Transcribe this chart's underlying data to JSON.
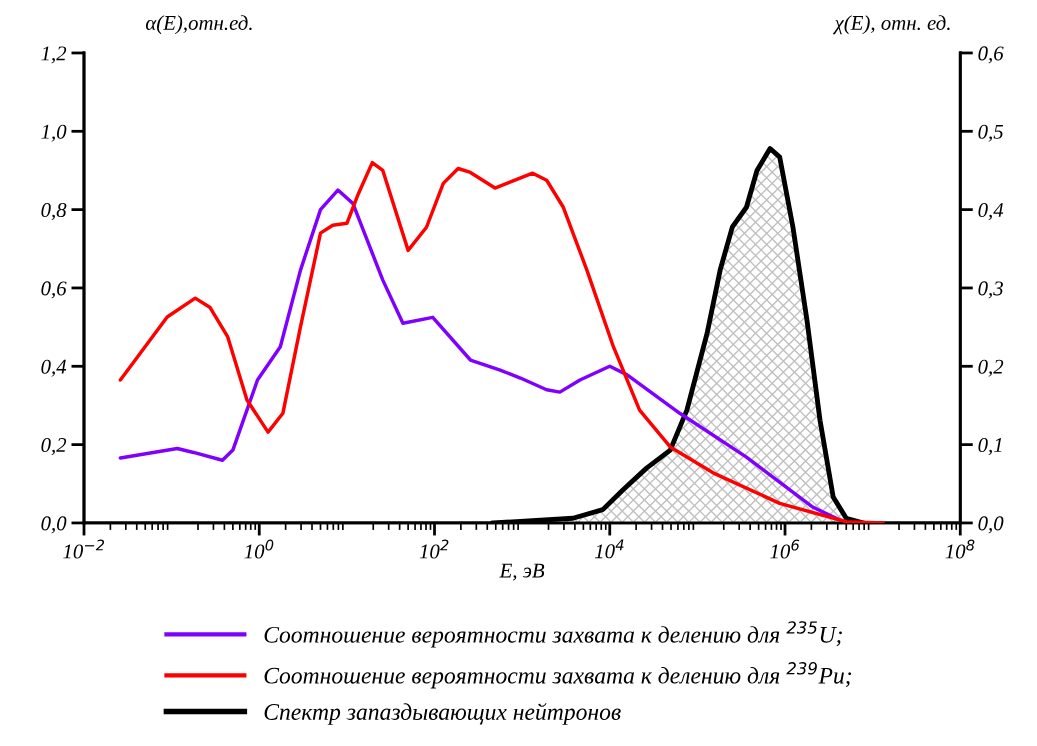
{
  "chart_data": {
    "type": "line",
    "xlabel": "E, эВ",
    "ylabel": "α(E),отн.ед.",
    "y2label": "χ(E), отн. ед.",
    "log": "x",
    "xlim": [
      0.01,
      100000000.0
    ],
    "xticks": [
      {
        "value": 0.01,
        "label": "10$^{−2}$"
      },
      {
        "value": 1,
        "label": "10$^{0}$"
      },
      {
        "value": 100,
        "label": "10$^{2}$"
      },
      {
        "value": 10000.0,
        "label": "10$^{4}$"
      },
      {
        "value": 1000000.0,
        "label": "10$^{6}$"
      },
      {
        "value": 100000000.0,
        "label": "10$^{8}$"
      }
    ],
    "ylim": [
      0,
      1.2
    ],
    "yticks": [
      {
        "value": 0,
        "label": "0,0"
      },
      {
        "value": 0.2,
        "label": "0,2"
      },
      {
        "value": 0.4,
        "label": "0,4"
      },
      {
        "value": 0.6,
        "label": "0,6"
      },
      {
        "value": 0.8,
        "label": "0,8"
      },
      {
        "value": 1.0,
        "label": "1,0"
      },
      {
        "value": 1.2,
        "label": "1,2"
      }
    ],
    "y2lim": [
      0,
      0.6
    ],
    "y2ticks": [
      {
        "value": 0,
        "label": "0,0"
      },
      {
        "value": 0.1,
        "label": "0,1"
      },
      {
        "value": 0.2,
        "label": "0,2"
      },
      {
        "value": 0.3,
        "label": "0,3"
      },
      {
        "value": 0.4,
        "label": "0,4"
      },
      {
        "value": 0.5,
        "label": "0,5"
      },
      {
        "value": 0.6,
        "label": "0,6"
      }
    ],
    "grid": false,
    "legend": "bottom",
    "series": [
      {
        "name": "Соотношение вероятности захвата к делению для $^{235}$U;",
        "color": "#8000ff",
        "x": [
          0.026,
          0.116,
          0.178,
          0.38,
          0.5,
          0.955,
          1.74,
          2.95,
          5.0,
          7.9,
          11.7,
          25.7,
          43.6,
          95.5,
          257,
          562,
          955,
          1905,
          2692,
          4571,
          10000.0,
          15800.0,
          63000.0,
          363000.0,
          2090000.0,
          4170000.0
        ],
        "values": [
          0.166,
          0.19,
          0.18,
          0.16,
          0.186,
          0.365,
          0.45,
          0.645,
          0.8,
          0.85,
          0.816,
          0.62,
          0.51,
          0.525,
          0.416,
          0.39,
          0.37,
          0.34,
          0.334,
          0.365,
          0.4,
          0.378,
          0.28,
          0.168,
          0.04,
          0.008
        ]
      },
      {
        "name": "Соотношение вероятности захвата к делению для $^{239}$Pu;",
        "color": "#ff0000",
        "x": [
          0.026,
          0.089,
          0.186,
          0.275,
          0.437,
          0.724,
          1.26,
          1.86,
          2.95,
          5.0,
          6.9,
          10,
          13.5,
          19.5,
          25.7,
          50,
          81,
          126,
          186,
          257,
          490,
          1318,
          1905,
          2951,
          5495,
          11000.0,
          21900.0,
          49000.0,
          151000.0,
          870000.0,
          5000000.0,
          13200000.0
        ],
        "values": [
          0.365,
          0.526,
          0.574,
          0.55,
          0.475,
          0.314,
          0.232,
          0.28,
          0.5,
          0.74,
          0.76,
          0.765,
          0.84,
          0.92,
          0.9,
          0.696,
          0.755,
          0.867,
          0.905,
          0.895,
          0.855,
          0.893,
          0.875,
          0.806,
          0.645,
          0.45,
          0.288,
          0.194,
          0.128,
          0.05,
          0.003,
          0.0
        ]
      },
      {
        "name": "Спектр запаздывающих нейтронов",
        "color": "#000000",
        "type": "area",
        "axis": "y2",
        "x": [
          468,
          3802,
          8318,
          14100.0,
          26300.0,
          49000.0,
          75900.0,
          129000.0,
          182000.0,
          251000.0,
          363000.0,
          479000.0,
          676000.0,
          870000.0,
          1230000.0,
          1780000.0,
          2510000.0,
          3550000.0,
          5000000.0,
          7760000.0
        ],
        "values": [
          0.0,
          0.006,
          0.017,
          0.042,
          0.07,
          0.093,
          0.144,
          0.242,
          0.323,
          0.378,
          0.403,
          0.45,
          0.478,
          0.467,
          0.378,
          0.259,
          0.131,
          0.033,
          0.006,
          0.0
        ]
      }
    ]
  }
}
